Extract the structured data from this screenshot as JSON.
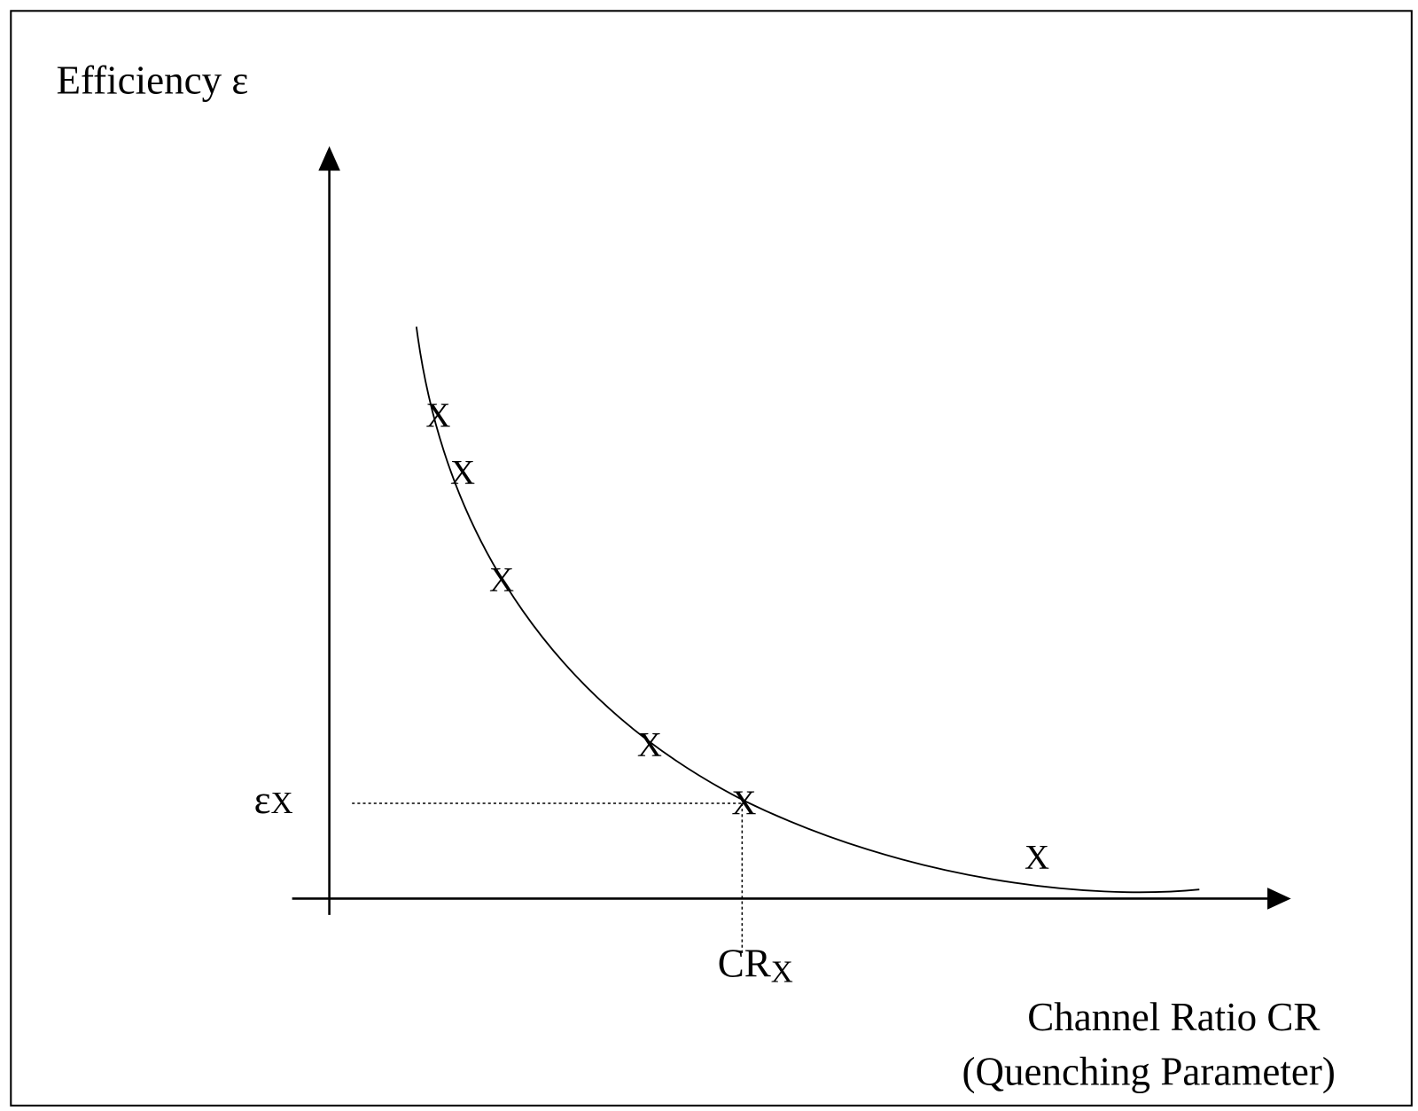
{
  "y_axis": {
    "label": "Efficiency ε"
  },
  "x_axis": {
    "label_lines": [
      "Channel Ratio CR",
      "(Quenching Parameter)"
    ]
  },
  "points": [
    "X",
    "X",
    "X",
    "X",
    "X",
    "X"
  ],
  "reference": {
    "y_symbol": "ε",
    "y_subscript": "X",
    "x_symbol": "CR",
    "x_subscript": "X"
  }
}
